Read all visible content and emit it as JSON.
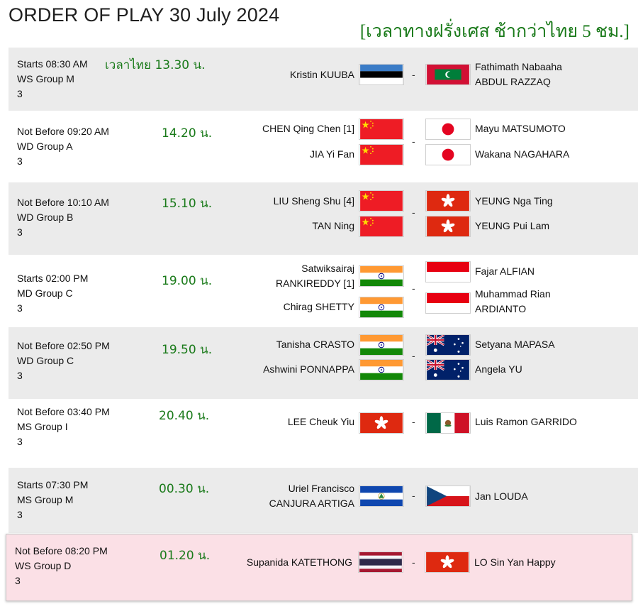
{
  "header": {
    "title": "ORDER OF PLAY 30 July 2024",
    "thai_note": "[เวลาทางฝรั่งเศส ช้ากว่าไทย 5 ชม.]"
  },
  "separator": "-",
  "matches": [
    {
      "time": "Starts 08:30 AM",
      "group": "WS Group M",
      "court": "3",
      "thai_time": "เวลาไทย 13.30 น.",
      "left": [
        {
          "name": "Kristin KUUBA",
          "flag": "estonia-flag"
        }
      ],
      "right": [
        {
          "name": "Fathimath Nabaaha ABDUL RAZZAQ",
          "line1": "Fathimath Nabaaha",
          "line2": "ABDUL RAZZAQ",
          "flag": "maldives-flag"
        }
      ]
    },
    {
      "time": "Not Before 09:20 AM",
      "group": "WD Group A",
      "court": "3",
      "thai_time": "14.20 น.",
      "left": [
        {
          "name": "CHEN Qing Chen [1]",
          "flag": "china-flag"
        },
        {
          "name": "JIA Yi Fan",
          "flag": "china-flag"
        }
      ],
      "right": [
        {
          "name": "Mayu MATSUMOTO",
          "flag": "japan-flag"
        },
        {
          "name": "Wakana NAGAHARA",
          "flag": "japan-flag"
        }
      ]
    },
    {
      "time": "Not Before 10:10 AM",
      "group": "WD Group B",
      "court": "3",
      "thai_time": "15.10 น.",
      "left": [
        {
          "name": "LIU Sheng Shu [4]",
          "flag": "china-flag"
        },
        {
          "name": "TAN Ning",
          "flag": "china-flag"
        }
      ],
      "right": [
        {
          "name": "YEUNG Nga Ting",
          "flag": "hong-kong-flag"
        },
        {
          "name": "YEUNG Pui Lam",
          "flag": "hong-kong-flag"
        }
      ]
    },
    {
      "time": "Starts 02:00 PM",
      "group": "MD Group C",
      "court": "3",
      "thai_time": "19.00 น.",
      "left": [
        {
          "name": "Satwiksairaj RANKIREDDY [1]",
          "line1": "Satwiksairaj",
          "line2": "RANKIREDDY [1]",
          "flag": "india-flag"
        },
        {
          "name": "Chirag SHETTY",
          "flag": "india-flag"
        }
      ],
      "right": [
        {
          "name": "Fajar ALFIAN",
          "flag": "indonesia-flag"
        },
        {
          "name": "Muhammad Rian ARDIANTO",
          "line1": "Muhammad Rian",
          "line2": "ARDIANTO",
          "flag": "indonesia-flag"
        }
      ]
    },
    {
      "time": "Not Before 02:50 PM",
      "group": "WD Group C",
      "court": "3",
      "thai_time": "19.50 น.",
      "left": [
        {
          "name": "Tanisha CRASTO",
          "flag": "india-flag"
        },
        {
          "name": "Ashwini PONNAPPA",
          "flag": "india-flag"
        }
      ],
      "right": [
        {
          "name": "Setyana MAPASA",
          "flag": "australia-flag"
        },
        {
          "name": "Angela YU",
          "flag": "australia-flag"
        }
      ]
    },
    {
      "time": "Not Before 03:40 PM",
      "group": "MS Group I",
      "court": "3",
      "thai_time": "20.40 น.",
      "left": [
        {
          "name": "LEE Cheuk Yiu",
          "flag": "hong-kong-flag"
        }
      ],
      "right": [
        {
          "name": "Luis Ramon GARRIDO",
          "flag": "mexico-flag"
        }
      ]
    },
    {
      "time": "Starts 07:30 PM",
      "group": "MS Group M",
      "court": "3",
      "thai_time": "00.30 น.",
      "left": [
        {
          "name": "Uriel Francisco CANJURA ARTIGA",
          "line1": "Uriel Francisco",
          "line2": "CANJURA ARTIGA",
          "flag": "el-salvador-flag"
        }
      ],
      "right": [
        {
          "name": "Jan LOUDA",
          "flag": "czech-republic-flag"
        }
      ]
    },
    {
      "time": "Not Before 08:20 PM",
      "group": "WS Group D",
      "court": "3",
      "thai_time": "01.20 น.",
      "left": [
        {
          "name": "Supanida KATETHONG",
          "flag": "thailand-flag"
        }
      ],
      "right": [
        {
          "name": "LO Sin Yan Happy",
          "flag": "hong-kong-flag"
        }
      ]
    }
  ]
}
